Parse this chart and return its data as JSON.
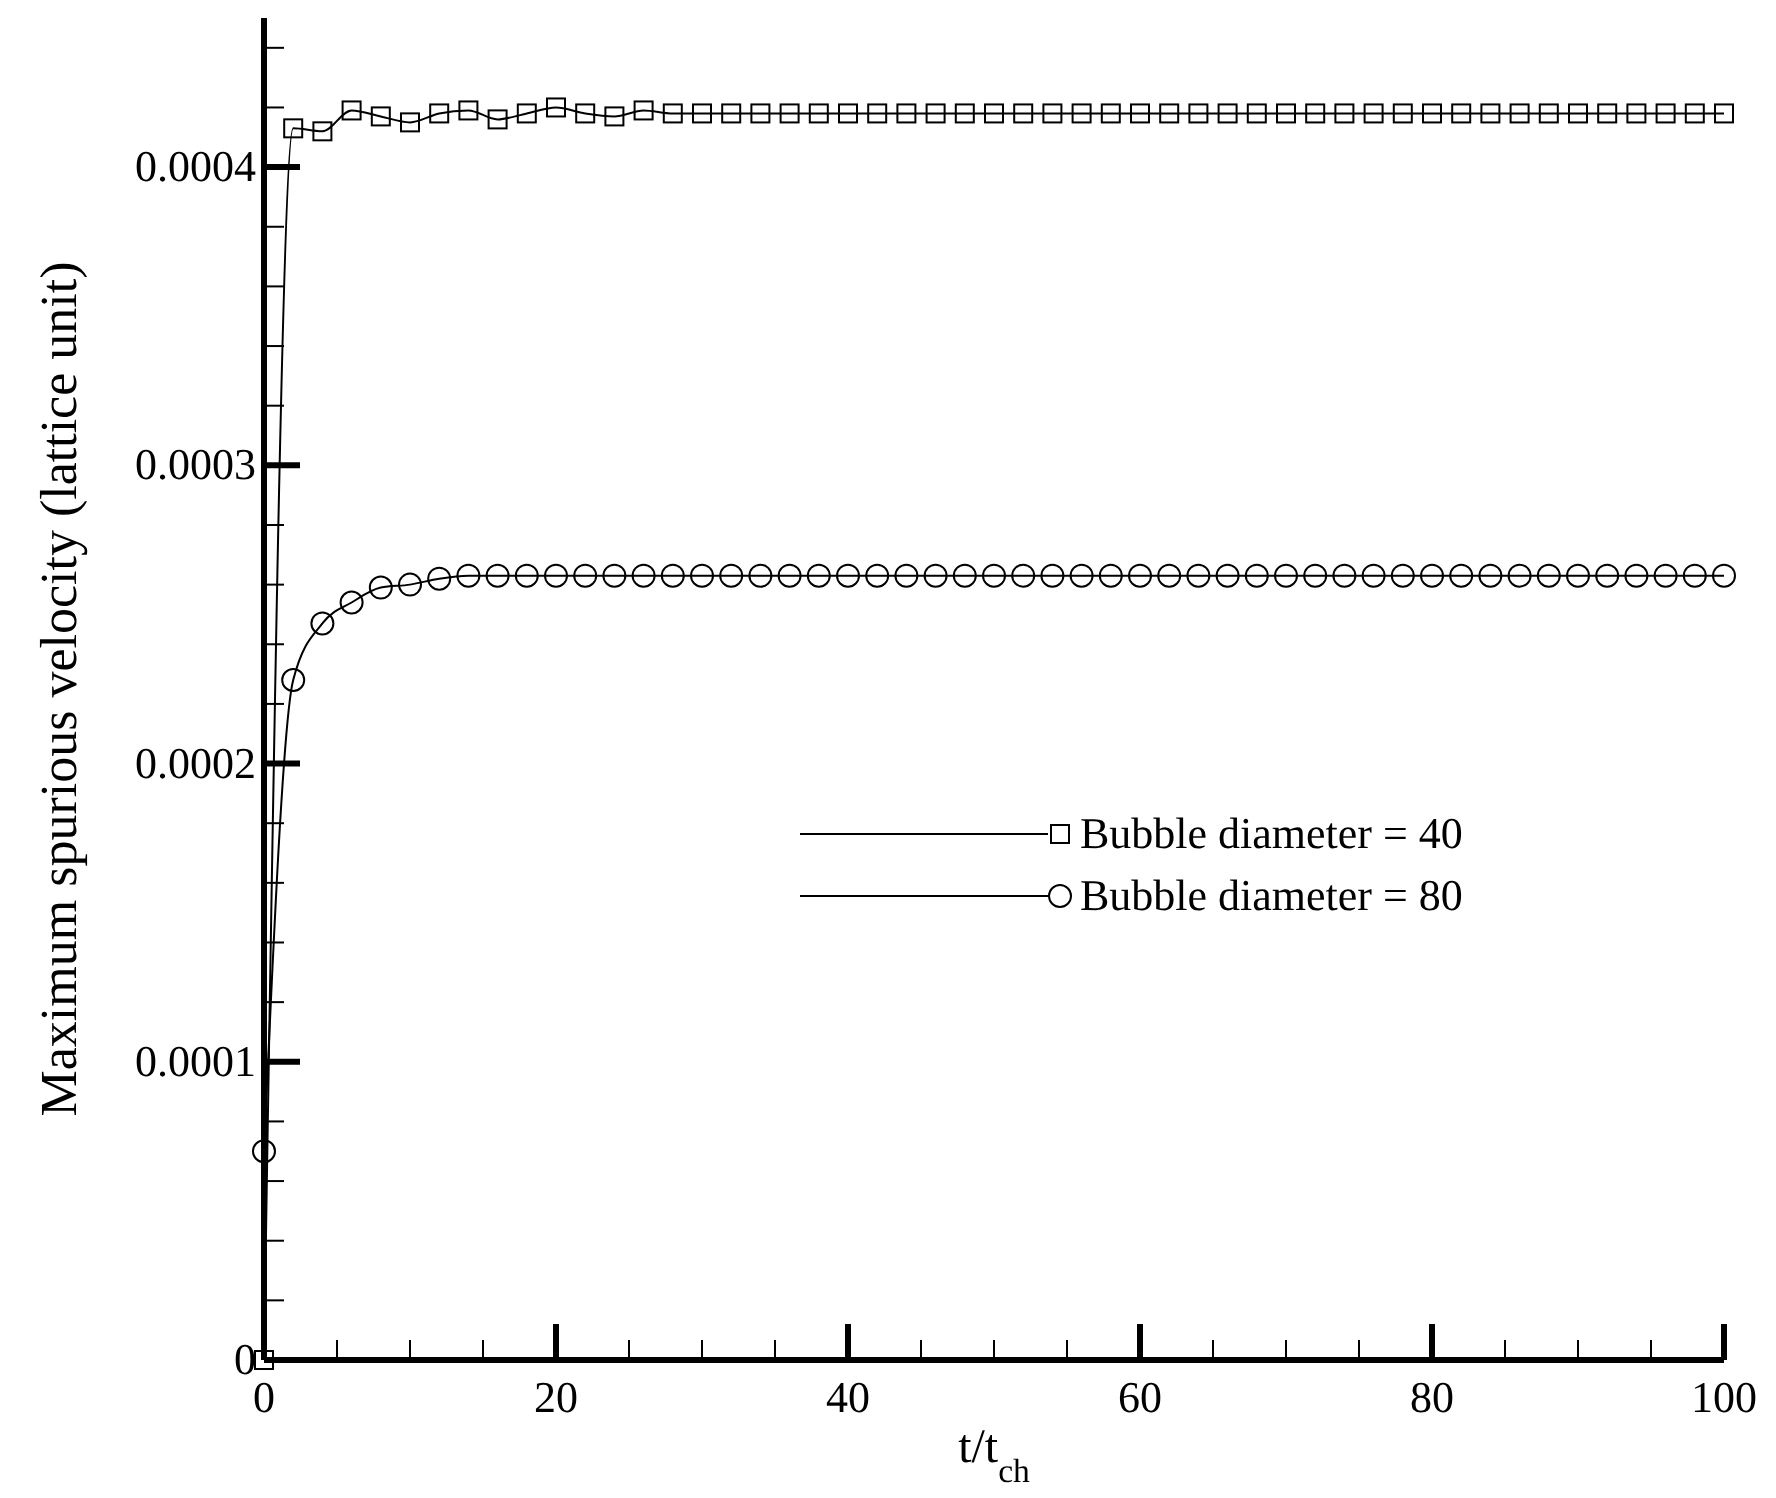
{
  "chart_data": {
    "type": "line",
    "xlabel": "t/t$_{ch}$",
    "ylabel": "Maximum spurious velocity (lattice unit)",
    "x": [
      0,
      2,
      4,
      6,
      8,
      10,
      12,
      14,
      16,
      18,
      20,
      22,
      24,
      26,
      28,
      30,
      32,
      34,
      36,
      38,
      40,
      42,
      44,
      46,
      48,
      50,
      52,
      54,
      56,
      58,
      60,
      62,
      64,
      66,
      68,
      70,
      72,
      74,
      76,
      78,
      80,
      82,
      84,
      86,
      88,
      90,
      92,
      94,
      96,
      98,
      100
    ],
    "series": [
      {
        "name": "Bubble diameter = 40",
        "color": "#000000",
        "marker": "square",
        "values": [
          0,
          0.000413,
          0.000412,
          0.000419,
          0.000417,
          0.000415,
          0.000418,
          0.000419,
          0.000416,
          0.000418,
          0.00042,
          0.000418,
          0.000417,
          0.000419,
          0.000418,
          0.000418,
          0.000418,
          0.000418,
          0.000418,
          0.000418,
          0.000418,
          0.000418,
          0.000418,
          0.000418,
          0.000418,
          0.000418,
          0.000418,
          0.000418,
          0.000418,
          0.000418,
          0.000418,
          0.000418,
          0.000418,
          0.000418,
          0.000418,
          0.000418,
          0.000418,
          0.000418,
          0.000418,
          0.000418,
          0.000418,
          0.000418,
          0.000418,
          0.000418,
          0.000418,
          0.000418,
          0.000418,
          0.000418,
          0.000418,
          0.000418,
          0.000418
        ]
      },
      {
        "name": "Bubble diameter = 80",
        "color": "#000000",
        "marker": "circle",
        "values": [
          7e-05,
          0.000228,
          0.000247,
          0.000254,
          0.000259,
          0.00026,
          0.000262,
          0.000263,
          0.000263,
          0.000263,
          0.000263,
          0.000263,
          0.000263,
          0.000263,
          0.000263,
          0.000263,
          0.000263,
          0.000263,
          0.000263,
          0.000263,
          0.000263,
          0.000263,
          0.000263,
          0.000263,
          0.000263,
          0.000263,
          0.000263,
          0.000263,
          0.000263,
          0.000263,
          0.000263,
          0.000263,
          0.000263,
          0.000263,
          0.000263,
          0.000263,
          0.000263,
          0.000263,
          0.000263,
          0.000263,
          0.000263,
          0.000263,
          0.000263,
          0.000263,
          0.000263,
          0.000263,
          0.000263,
          0.000263,
          0.000263,
          0.000263,
          0.000263
        ]
      }
    ],
    "xlim": [
      0,
      100
    ],
    "xticks": [
      0,
      {
        "value": 5,
        "label": null
      },
      {
        "value": 10,
        "label": null
      },
      {
        "value": 15,
        "label": null
      },
      20,
      {
        "value": 25,
        "label": null
      },
      {
        "value": 30,
        "label": null
      },
      {
        "value": 35,
        "label": null
      },
      40,
      {
        "value": 45,
        "label": null
      },
      {
        "value": 50,
        "label": null
      },
      {
        "value": 55,
        "label": null
      },
      60,
      {
        "value": 65,
        "label": null
      },
      {
        "value": 70,
        "label": null
      },
      {
        "value": 75,
        "label": null
      },
      80,
      {
        "value": 85,
        "label": null
      },
      {
        "value": 90,
        "label": null
      },
      {
        "value": 95,
        "label": null
      },
      100
    ],
    "ylim": [
      0,
      0.00045
    ],
    "yticks": [
      0,
      {
        "value": 2e-05,
        "label": null
      },
      {
        "value": 4e-05,
        "label": null
      },
      {
        "value": 6e-05,
        "label": null
      },
      {
        "value": 8e-05,
        "label": null
      },
      {
        "value": 0.0001,
        "label": "0.0001"
      },
      {
        "value": 0.00012,
        "label": null
      },
      {
        "value": 0.00014,
        "label": null
      },
      {
        "value": 0.00016,
        "label": null
      },
      {
        "value": 0.00018,
        "label": null
      },
      {
        "value": 0.0002,
        "label": "0.0002"
      },
      {
        "value": 0.00022,
        "label": null
      },
      {
        "value": 0.00024,
        "label": null
      },
      {
        "value": 0.00026,
        "label": null
      },
      {
        "value": 0.00028,
        "label": null
      },
      {
        "value": 0.0003,
        "label": "0.0003"
      },
      {
        "value": 0.00032,
        "label": null
      },
      {
        "value": 0.00034,
        "label": null
      },
      {
        "value": 0.00036,
        "label": null
      },
      {
        "value": 0.00038,
        "label": null
      },
      {
        "value": 0.0004,
        "label": "0.0004"
      },
      {
        "value": 0.00042,
        "label": null
      },
      {
        "value": 0.00044,
        "label": null
      }
    ],
    "legend": "right",
    "grid": false,
    "line_style": "solid"
  }
}
